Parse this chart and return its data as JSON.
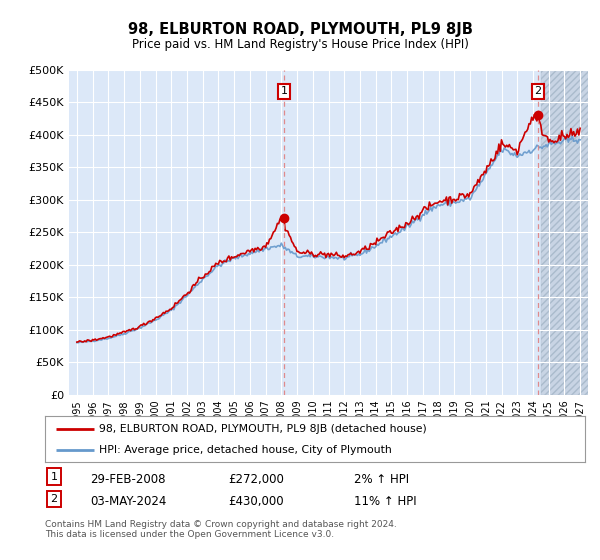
{
  "title": "98, ELBURTON ROAD, PLYMOUTH, PL9 8JB",
  "subtitle": "Price paid vs. HM Land Registry's House Price Index (HPI)",
  "ylabel_ticks": [
    "£0",
    "£50K",
    "£100K",
    "£150K",
    "£200K",
    "£250K",
    "£300K",
    "£350K",
    "£400K",
    "£450K",
    "£500K"
  ],
  "ylim": [
    0,
    500000
  ],
  "ytick_values": [
    0,
    50000,
    100000,
    150000,
    200000,
    250000,
    300000,
    350000,
    400000,
    450000,
    500000
  ],
  "hpi_color": "#6699cc",
  "price_color": "#cc0000",
  "annotation1": {
    "label": "1",
    "date": "29-FEB-2008",
    "price": "£272,000",
    "hpi": "2% ↑ HPI"
  },
  "annotation2": {
    "label": "2",
    "date": "03-MAY-2024",
    "price": "£430,000",
    "hpi": "11% ↑ HPI"
  },
  "legend_line1": "98, ELBURTON ROAD, PLYMOUTH, PL9 8JB (detached house)",
  "legend_line2": "HPI: Average price, detached house, City of Plymouth",
  "footnote": "Contains HM Land Registry data © Crown copyright and database right 2024.\nThis data is licensed under the Open Government Licence v3.0.",
  "background_color": "#ffffff",
  "plot_bg_color": "#dce8f8",
  "grid_color": "#ffffff",
  "hatch_bg_color": "#d0d8e8",
  "marker1_x": 2008.17,
  "marker1_y": 272000,
  "marker2_x": 2024.33,
  "marker2_y": 430000,
  "xlim_left": 1994.5,
  "xlim_right": 2027.5,
  "hatch_start": 2024.5
}
